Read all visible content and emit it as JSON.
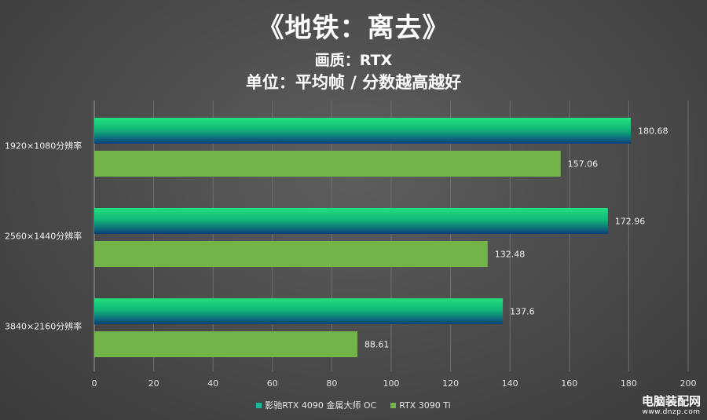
{
  "header": {
    "title": "《地铁：离去》",
    "subtitle1": "画质：RTX",
    "subtitle2": "单位：平均帧 / 分数越高越好"
  },
  "chart_data": {
    "type": "bar",
    "orientation": "horizontal",
    "categories": [
      "1920×1080分辨率",
      "2560×1440分辨率",
      "3840×2160分辨率"
    ],
    "series": [
      {
        "name": "影驰RTX 4090 金属大师 OC",
        "values": [
          180.68,
          172.96,
          137.6
        ],
        "value_labels": [
          "180.68",
          "172.96",
          "137.6"
        ],
        "color": "#1ec97a"
      },
      {
        "name": "RTX 3090 Ti",
        "values": [
          157.06,
          132.48,
          88.61
        ],
        "value_labels": [
          "157.06",
          "132.48",
          "88.61"
        ],
        "color": "#72b34a"
      }
    ],
    "xlim": [
      0,
      200
    ],
    "xticks": [
      "0",
      "20",
      "40",
      "60",
      "80",
      "100",
      "120",
      "140",
      "160",
      "180",
      "200"
    ],
    "grid": "vertical",
    "legend": "bottom-center"
  },
  "watermark": {
    "line1": "电脑装配网",
    "line2": "www.dnzp.com"
  }
}
